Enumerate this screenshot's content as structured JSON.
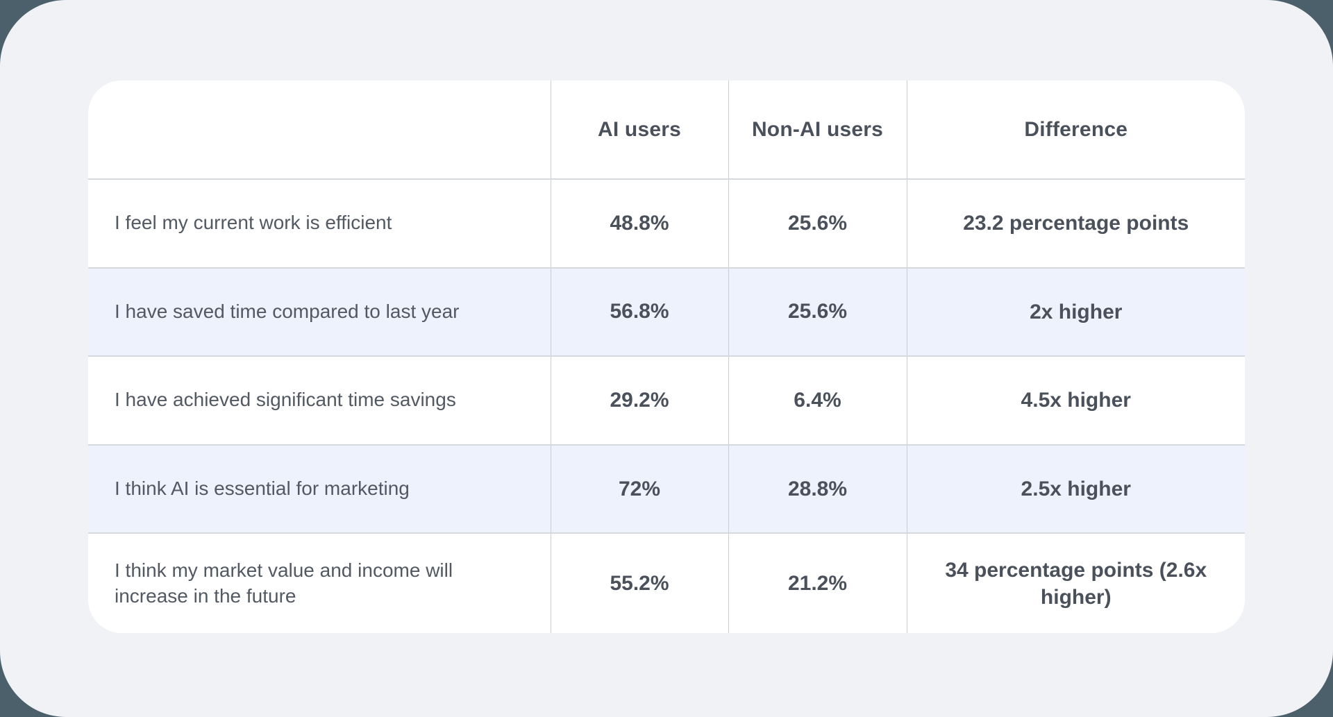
{
  "theme": {
    "outer_background": "#4b606b",
    "page_background": "#f0f2f6",
    "card_background": "#ffffff",
    "alt_row_background": "#edf2fc",
    "horizontal_divider": "#d5d8dd",
    "vertical_divider": "#c9cdd3",
    "text_strong": "#4a515b",
    "text_regular": "#525962"
  },
  "chart_data": {
    "type": "table",
    "title": "",
    "columns": [
      "",
      "AI users",
      "Non-AI users",
      "Difference"
    ],
    "rows": [
      {
        "statement": "I feel my current work is efficient",
        "ai_users": "48.8%",
        "non_ai_users": "25.6%",
        "difference": "23.2 percentage points"
      },
      {
        "statement": "I have saved time compared to last year",
        "ai_users": "56.8%",
        "non_ai_users": "25.6%",
        "difference": "2x higher"
      },
      {
        "statement": "I have achieved significant time savings",
        "ai_users": "29.2%",
        "non_ai_users": "6.4%",
        "difference": "4.5x higher"
      },
      {
        "statement": "I think AI is essential for marketing",
        "ai_users": "72%",
        "non_ai_users": "28.8%",
        "difference": "2.5x higher"
      },
      {
        "statement": "I think my market value and income will increase in the future",
        "ai_users": "55.2%",
        "non_ai_users": "21.2%",
        "difference": "34 percentage points (2.6x higher)"
      }
    ],
    "layout": {
      "row_striping": "rows 2 and 4 tinted light blue",
      "grid": "vertical dividers between all columns, horizontal dividers between rows"
    }
  }
}
